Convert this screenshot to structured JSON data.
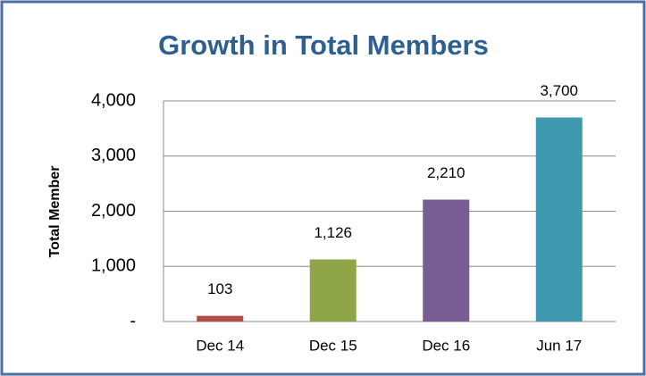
{
  "chart_data": {
    "type": "bar",
    "title": "Growth in Total Members",
    "y_label": "Total Member",
    "categories": [
      "Dec 14",
      "Dec 15",
      "Dec 16",
      "Jun 17"
    ],
    "values": [
      103,
      1126,
      2210,
      3700
    ],
    "value_labels": [
      "103",
      "1,126",
      "2,210",
      "3,700"
    ],
    "colors": [
      "#b24a45",
      "#8ea548",
      "#775d91",
      "#3f9ab0"
    ],
    "ylim": [
      0,
      4000
    ],
    "yticks": [
      {
        "value": 0,
        "label": "-"
      },
      {
        "value": 1000,
        "label": "1,000"
      },
      {
        "value": 2000,
        "label": "2,000"
      },
      {
        "value": 3000,
        "label": "3,000"
      },
      {
        "value": 4000,
        "label": "4,000"
      }
    ],
    "grid": true
  }
}
